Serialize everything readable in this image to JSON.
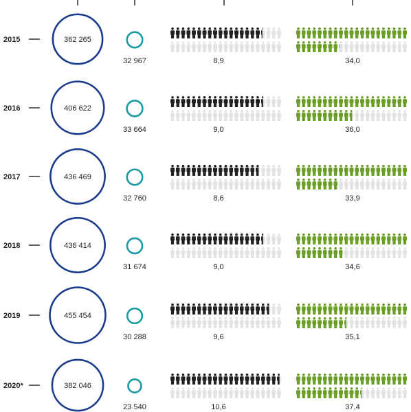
{
  "chart_data": {
    "type": "infographic",
    "title": "",
    "colors": {
      "big_circle": "#1a3b8b",
      "small_circle": "#1a9aa0",
      "dark_icon": "#231f20",
      "green_icon": "#6a9e25",
      "empty_icon": "#e3e3e3",
      "text": "#231f20"
    },
    "icon_shape": "person-icon",
    "rows": [
      {
        "year": "2015",
        "big_value": 362265,
        "big_label": "362 265",
        "small_value": 32967,
        "small_label": "32 967",
        "dark_value": 8.9,
        "dark_label": "8,9",
        "green_value": 34.0,
        "green_label": "34,0"
      },
      {
        "year": "2016",
        "big_value": 406622,
        "big_label": "406 622",
        "small_value": 33664,
        "small_label": "33 664",
        "dark_value": 9.0,
        "dark_label": "9,0",
        "green_value": 36.0,
        "green_label": "36,0"
      },
      {
        "year": "2017",
        "big_value": 436469,
        "big_label": "436 469",
        "small_value": 32760,
        "small_label": "32 760",
        "dark_value": 8.6,
        "dark_label": "8,6",
        "green_value": 33.9,
        "green_label": "33,9"
      },
      {
        "year": "2018",
        "big_value": 436414,
        "big_label": "436 414",
        "small_value": 31674,
        "small_label": "31 674",
        "dark_value": 9.0,
        "dark_label": "9,0",
        "green_value": 34.6,
        "green_label": "34,6"
      },
      {
        "year": "2019",
        "big_value": 455454,
        "big_label": "455 454",
        "small_value": 30288,
        "small_label": "30 288",
        "dark_value": 9.6,
        "dark_label": "9,6",
        "green_value": 35.1,
        "green_label": "35,1"
      },
      {
        "year": "2020*",
        "big_value": 382046,
        "big_label": "382 046",
        "small_value": 23540,
        "small_label": "23 540",
        "dark_value": 10.6,
        "dark_label": "10,6",
        "green_value": 37.4,
        "green_label": "37,4"
      }
    ]
  }
}
